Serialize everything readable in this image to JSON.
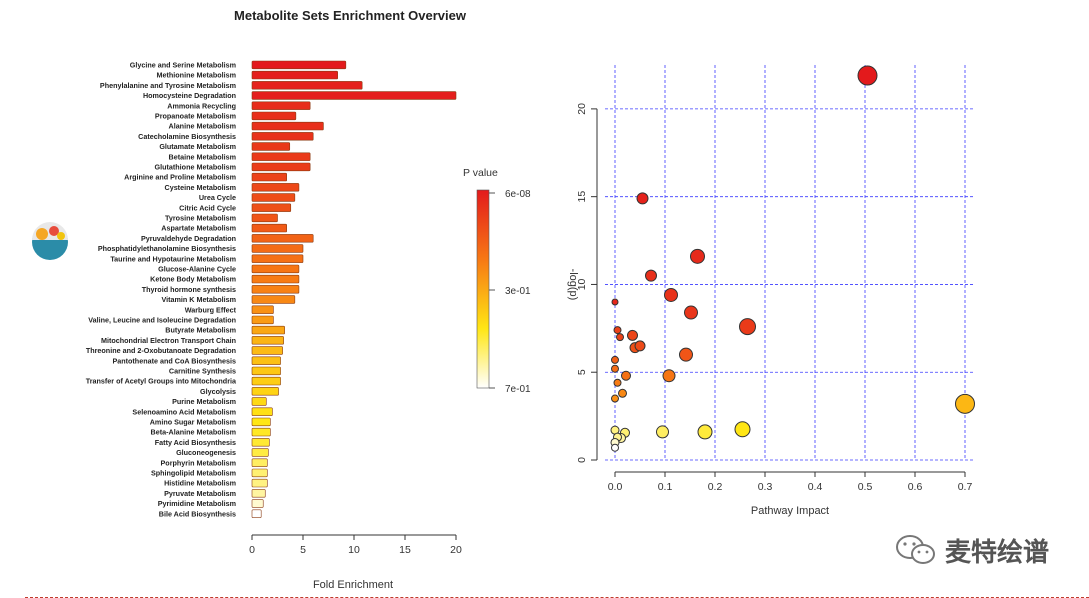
{
  "colors": {
    "bar_high": "#e31a1c",
    "bar_low": "#ffffff",
    "grid": "#3b3bff"
  },
  "legend": {
    "title": "P value",
    "labels": [
      "6e-08",
      "3e-01",
      "7e-01"
    ]
  },
  "watermark": {
    "text": "麦特绘谱",
    "icon": "wechat-icon"
  },
  "chart_data": [
    {
      "type": "bar",
      "orientation": "horizontal",
      "title": "Metabolite Sets Enrichment Overview",
      "xlabel": "Fold Enrichment",
      "xlim": [
        0,
        20
      ],
      "xticks": [
        0,
        5,
        10,
        15,
        20
      ],
      "categories": [
        "Glycine and Serine Metabolism",
        "Methionine Metabolism",
        "Phenylalanine and Tyrosine Metabolism",
        "Homocysteine Degradation",
        "Ammonia Recycling",
        "Propanoate Metabolism",
        "Alanine Metabolism",
        "Catecholamine Biosynthesis",
        "Glutamate Metabolism",
        "Betaine Metabolism",
        "Glutathione Metabolism",
        "Arginine and Proline Metabolism",
        "Cysteine Metabolism",
        "Urea Cycle",
        "Citric Acid Cycle",
        "Tyrosine Metabolism",
        "Aspartate Metabolism",
        "Pyruvaldehyde Degradation",
        "Phosphatidylethanolamine Biosynthesis",
        "Taurine and Hypotaurine Metabolism",
        "Glucose-Alanine Cycle",
        "Ketone Body Metabolism",
        "Thyroid hormone synthesis",
        "Vitamin K Metabolism",
        "Warburg Effect",
        "Valine, Leucine and Isoleucine Degradation",
        "Butyrate Metabolism",
        "Mitochondrial Electron Transport Chain",
        "Threonine and 2-Oxobutanoate Degradation",
        "Pantothenate and CoA Biosynthesis",
        "Carnitine Synthesis",
        "Transfer of Acetyl Groups into Mitochondria",
        "Glycolysis",
        "Purine Metabolism",
        "Selenoamino Acid Metabolism",
        "Amino Sugar Metabolism",
        "Beta-Alanine Metabolism",
        "Fatty Acid Biosynthesis",
        "Gluconeogenesis",
        "Porphyrin Metabolism",
        "Sphingolipid Metabolism",
        "Histidine Metabolism",
        "Pyruvate Metabolism",
        "Pyrimidine Metabolism",
        "Bile Acid Biosynthesis"
      ],
      "values": [
        9.2,
        8.4,
        10.8,
        20.0,
        5.7,
        4.3,
        7.0,
        6.0,
        3.7,
        5.7,
        5.7,
        3.4,
        4.6,
        4.2,
        3.8,
        2.5,
        3.4,
        6.0,
        5.0,
        5.0,
        4.6,
        4.6,
        4.6,
        4.2,
        2.1,
        2.1,
        3.2,
        3.1,
        3.0,
        2.8,
        2.8,
        2.8,
        2.6,
        1.4,
        2.0,
        1.8,
        1.8,
        1.7,
        1.6,
        1.5,
        1.5,
        1.5,
        1.3,
        1.1,
        0.9
      ],
      "shade": [
        0.0,
        0.02,
        0.03,
        0.02,
        0.07,
        0.08,
        0.08,
        0.09,
        0.11,
        0.12,
        0.13,
        0.15,
        0.17,
        0.19,
        0.2,
        0.22,
        0.24,
        0.27,
        0.3,
        0.32,
        0.34,
        0.36,
        0.38,
        0.4,
        0.43,
        0.46,
        0.5,
        0.54,
        0.56,
        0.58,
        0.6,
        0.62,
        0.64,
        0.66,
        0.68,
        0.7,
        0.72,
        0.74,
        0.76,
        0.8,
        0.82,
        0.84,
        0.88,
        0.94,
        1.0
      ]
    },
    {
      "type": "scatter",
      "xlabel": "Pathway Impact",
      "ylabel": "-log(p)",
      "xlim": [
        -0.02,
        0.72
      ],
      "ylim": [
        0,
        22.5
      ],
      "xticks": [
        0.0,
        0.1,
        0.2,
        0.3,
        0.4,
        0.5,
        0.6,
        0.7
      ],
      "yticks": [
        0,
        5,
        10,
        15,
        20
      ],
      "grid": true,
      "points": [
        {
          "x": 0.505,
          "y": 21.9,
          "size": 9.5,
          "shade": 0.0
        },
        {
          "x": 0.055,
          "y": 14.9,
          "size": 5.5,
          "shade": 0.03
        },
        {
          "x": 0.165,
          "y": 11.6,
          "size": 7.0,
          "shade": 0.06
        },
        {
          "x": 0.072,
          "y": 10.5,
          "size": 5.5,
          "shade": 0.08
        },
        {
          "x": 0.112,
          "y": 9.4,
          "size": 6.5,
          "shade": 0.09
        },
        {
          "x": 0.152,
          "y": 8.4,
          "size": 6.5,
          "shade": 0.1
        },
        {
          "x": 0.265,
          "y": 7.6,
          "size": 8.0,
          "shade": 0.12
        },
        {
          "x": 0.0,
          "y": 9.0,
          "size": 3.0,
          "shade": 0.05
        },
        {
          "x": 0.005,
          "y": 7.4,
          "size": 3.5,
          "shade": 0.14
        },
        {
          "x": 0.01,
          "y": 7.0,
          "size": 3.5,
          "shade": 0.15
        },
        {
          "x": 0.035,
          "y": 7.1,
          "size": 5.0,
          "shade": 0.16
        },
        {
          "x": 0.04,
          "y": 6.4,
          "size": 5.0,
          "shade": 0.2
        },
        {
          "x": 0.05,
          "y": 6.5,
          "size": 5.0,
          "shade": 0.18
        },
        {
          "x": 0.142,
          "y": 6.0,
          "size": 6.5,
          "shade": 0.22
        },
        {
          "x": 0.0,
          "y": 5.7,
          "size": 3.5,
          "shade": 0.26
        },
        {
          "x": 0.0,
          "y": 5.2,
          "size": 3.5,
          "shade": 0.3
        },
        {
          "x": 0.022,
          "y": 4.8,
          "size": 4.5,
          "shade": 0.32
        },
        {
          "x": 0.108,
          "y": 4.8,
          "size": 6.0,
          "shade": 0.34
        },
        {
          "x": 0.005,
          "y": 4.4,
          "size": 3.5,
          "shade": 0.36
        },
        {
          "x": 0.015,
          "y": 3.8,
          "size": 4.0,
          "shade": 0.4
        },
        {
          "x": 0.0,
          "y": 3.5,
          "size": 3.5,
          "shade": 0.42
        },
        {
          "x": 0.7,
          "y": 3.2,
          "size": 9.5,
          "shade": 0.55
        },
        {
          "x": 0.255,
          "y": 1.75,
          "size": 7.5,
          "shade": 0.7
        },
        {
          "x": 0.18,
          "y": 1.6,
          "size": 7.0,
          "shade": 0.75
        },
        {
          "x": 0.095,
          "y": 1.6,
          "size": 6.0,
          "shade": 0.8
        },
        {
          "x": 0.02,
          "y": 1.55,
          "size": 4.5,
          "shade": 0.82
        },
        {
          "x": 0.0,
          "y": 1.7,
          "size": 4.0,
          "shade": 0.84
        },
        {
          "x": 0.005,
          "y": 1.3,
          "size": 4.0,
          "shade": 0.86
        },
        {
          "x": 0.012,
          "y": 1.25,
          "size": 4.5,
          "shade": 0.88
        },
        {
          "x": 0.0,
          "y": 1.0,
          "size": 4.0,
          "shade": 0.94
        },
        {
          "x": 0.0,
          "y": 0.7,
          "size": 3.5,
          "shade": 1.0
        }
      ]
    }
  ]
}
